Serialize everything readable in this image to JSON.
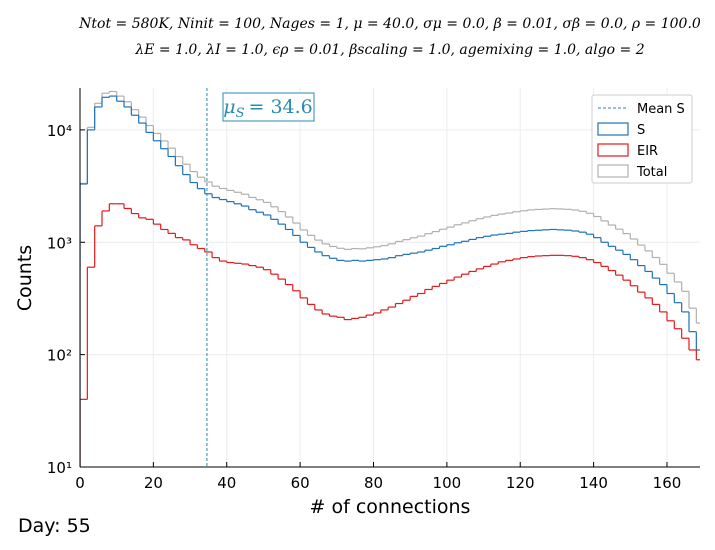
{
  "chart_data": {
    "type": "histogram",
    "title": [
      "Ntot = 580K, Ninit = 100, Nages = 1, μ = 40.0, σμ = 0.0, β = 0.01, σβ = 0.0, ρ = 100.0",
      "λE = 1.0, λI = 1.0, ϵρ = 0.01, βscaling = 1.0, agemixing = 1.0, algo = 2"
    ],
    "xlabel": "# of connections",
    "ylabel": "Counts",
    "footer": "Day: 55",
    "log_y": true,
    "grid": true,
    "legend": "upper right",
    "xlim": [
      0,
      169
    ],
    "ylim": [
      10,
      23600
    ],
    "xticks": [
      0,
      20,
      40,
      60,
      80,
      100,
      120,
      140,
      160
    ],
    "yticks": [
      {
        "value": 10,
        "label": "10¹"
      },
      {
        "value": 100,
        "label": "10²"
      },
      {
        "value": 1000,
        "label": "10³"
      },
      {
        "value": 10000,
        "label": "10⁴"
      }
    ],
    "mean": {
      "name": "Mean S",
      "value": 34.6,
      "color": "#2a8ab0",
      "symbol": "μ",
      "sub": "S",
      "label": "= 34.6"
    },
    "bins": [
      0,
      2,
      4,
      6,
      8,
      10,
      12,
      14,
      16,
      18,
      20,
      22,
      24,
      26,
      28,
      30,
      32,
      34,
      36,
      38,
      40,
      42,
      44,
      46,
      48,
      50,
      52,
      54,
      56,
      58,
      60,
      62,
      64,
      66,
      68,
      70,
      72,
      74,
      76,
      78,
      80,
      82,
      84,
      86,
      88,
      90,
      92,
      94,
      96,
      98,
      100,
      102,
      104,
      106,
      108,
      110,
      112,
      114,
      116,
      118,
      120,
      122,
      124,
      126,
      128,
      130,
      132,
      134,
      136,
      138,
      140,
      142,
      144,
      146,
      148,
      150,
      152,
      154,
      156,
      158,
      160,
      162,
      164,
      166,
      168,
      170
    ],
    "series": [
      {
        "name": "Total",
        "color": "#b0b0b0",
        "values": [
          3340,
          10540,
          17260,
          21210,
          21980,
          19980,
          17800,
          15120,
          12985,
          10940,
          9305,
          7970,
          6880,
          5790,
          4945,
          4255,
          3792,
          3438,
          3157,
          3012,
          2894,
          2785,
          2676,
          2508,
          2390,
          2263,
          2068,
          1873,
          1678,
          1483,
          1288,
          1152,
          1045,
          967,
          918,
          884,
          865,
          879,
          874,
          893,
          912,
          935,
          969,
          1017,
          1055,
          1097,
          1135,
          1192,
          1245,
          1307,
          1364,
          1431,
          1488,
          1555,
          1622,
          1679,
          1736,
          1783,
          1821,
          1869,
          1907,
          1941,
          1960,
          1974,
          1989,
          1979,
          1964,
          1935,
          1887,
          1810,
          1694,
          1549,
          1424,
          1309,
          1194,
          1069,
          944,
          838,
          732,
          636,
          530,
          443,
          366,
          259,
          191
        ]
      },
      {
        "name": "S",
        "color": "#1f72b8",
        "values": [
          3300,
          10000,
          16000,
          19500,
          20000,
          18000,
          16000,
          13500,
          11500,
          9500,
          8000,
          6800,
          5800,
          4800,
          4000,
          3400,
          3000,
          2700,
          2500,
          2400,
          2300,
          2200,
          2100,
          1950,
          1850,
          1750,
          1600,
          1450,
          1300,
          1150,
          1000,
          900,
          820,
          760,
          720,
          690,
          680,
          690,
          680,
          690,
          700,
          710,
          730,
          760,
          780,
          800,
          820,
          850,
          880,
          920,
          950,
          990,
          1020,
          1060,
          1100,
          1130,
          1160,
          1180,
          1200,
          1230,
          1250,
          1270,
          1280,
          1290,
          1300,
          1290,
          1280,
          1260,
          1230,
          1180,
          1100,
          1000,
          920,
          850,
          780,
          700,
          620,
          550,
          480,
          420,
          350,
          290,
          240,
          160,
          110
        ]
      },
      {
        "name": "EIR",
        "color": "#e3191c",
        "values": [
          40,
          600,
          1400,
          1900,
          2200,
          2200,
          2000,
          1800,
          1650,
          1600,
          1450,
          1300,
          1200,
          1100,
          1050,
          950,
          880,
          820,
          730,
          680,
          660,
          650,
          640,
          620,
          600,
          570,
          520,
          470,
          420,
          370,
          320,
          280,
          250,
          230,
          220,
          215,
          205,
          210,
          215,
          225,
          235,
          250,
          265,
          285,
          305,
          330,
          350,
          380,
          405,
          430,
          460,
          490,
          520,
          550,
          580,
          610,
          640,
          670,
          690,
          710,
          730,
          745,
          755,
          760,
          765,
          765,
          760,
          750,
          730,
          700,
          660,
          610,
          560,
          510,
          460,
          410,
          360,
          320,
          280,
          240,
          200,
          170,
          140,
          110,
          90
        ]
      }
    ]
  }
}
